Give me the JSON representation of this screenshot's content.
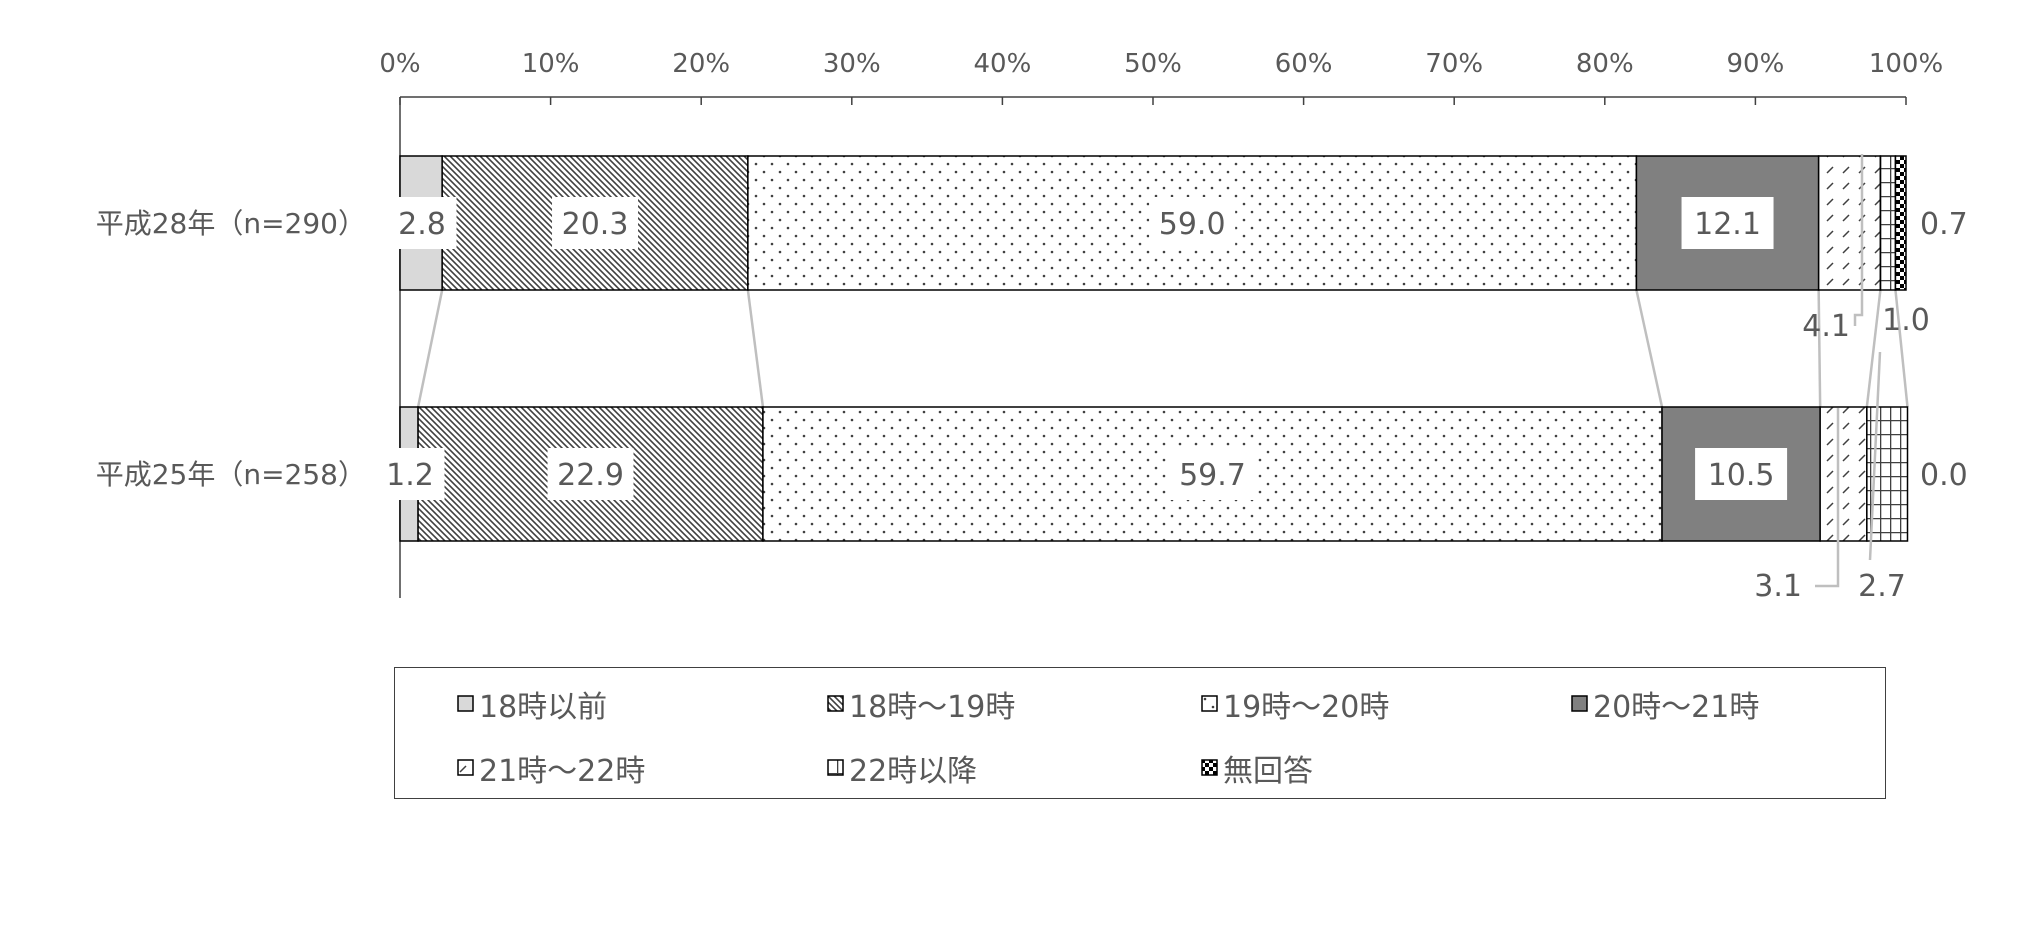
{
  "chart_data": {
    "type": "bar",
    "orientation": "horizontal",
    "stacked": true,
    "percent_axis": true,
    "title": "",
    "xlabel": "",
    "ylabel": "",
    "xlim": [
      0,
      100
    ],
    "x_ticks": [
      "0%",
      "10%",
      "20%",
      "30%",
      "40%",
      "50%",
      "60%",
      "70%",
      "80%",
      "90%",
      "100%"
    ],
    "categories": [
      "平成28年（n=290）",
      "平成25年（n=258）"
    ],
    "series": [
      {
        "name": "18時以前",
        "values": [
          2.8,
          1.2
        ],
        "labels": [
          "2.8",
          "1.2"
        ],
        "pattern": "solid-lightgray"
      },
      {
        "name": "18時～19時",
        "values": [
          20.3,
          22.9
        ],
        "labels": [
          "20.3",
          "22.9"
        ],
        "pattern": "diagonal-dense"
      },
      {
        "name": "19時～20時",
        "values": [
          59.0,
          59.7
        ],
        "labels": [
          "59.0",
          "59.7"
        ],
        "pattern": "dots"
      },
      {
        "name": "20時～21時",
        "values": [
          12.1,
          10.5
        ],
        "labels": [
          "12.1",
          "10.5"
        ],
        "pattern": "solid-darkgray"
      },
      {
        "name": "21時～22時",
        "values": [
          4.1,
          3.1
        ],
        "labels": [
          "4.1",
          "3.1"
        ],
        "pattern": "diagonal-sparse"
      },
      {
        "name": "22時以降",
        "values": [
          1.0,
          2.7
        ],
        "labels": [
          "1.0",
          "2.7"
        ],
        "pattern": "grid"
      },
      {
        "name": "無回答",
        "values": [
          0.7,
          0.0
        ],
        "labels": [
          "0.7",
          "0.0"
        ],
        "pattern": "checker"
      }
    ],
    "legend": {
      "placement": "bottom",
      "columns": 4
    },
    "series_lines": true,
    "colors": {
      "axis": "#404040",
      "text": "#595959",
      "light": "#d9d9d9",
      "dark": "#808080",
      "connector": "#bfbfbf"
    }
  }
}
